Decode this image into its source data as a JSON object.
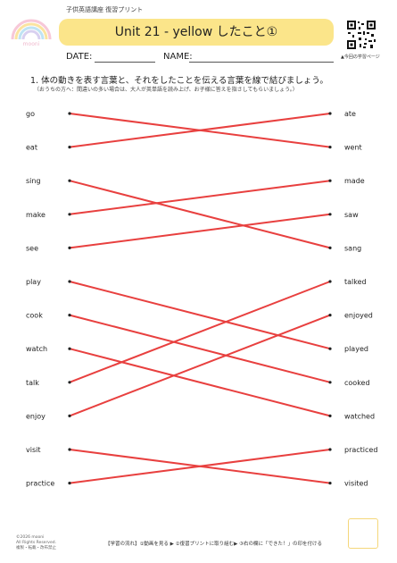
{
  "header": {
    "course": "子供英語講座 復習プリント",
    "title": "Unit 21 - yellow したこと①",
    "logo_text": "mooni",
    "qr_caption": "▲今回の学習ページ"
  },
  "fields": {
    "date_label": "DATE:",
    "name_label": "NAME:"
  },
  "instruction": "1. 体の動きを表す言葉と、それをしたことを伝える言葉を線で結びましょう。",
  "note": "（おうちの方へ：間違いの多い場合は、大人が英単語を読み上げ、お子様に答えを指さしてもらいましょう。）",
  "left_words": [
    "go",
    "eat",
    "sing",
    "make",
    "see",
    "play",
    "cook",
    "watch",
    "talk",
    "enjoy",
    "visit",
    "practice"
  ],
  "right_words": [
    "ate",
    "went",
    "made",
    "saw",
    "sang",
    "talked",
    "enjoyed",
    "played",
    "cooked",
    "watched",
    "practiced",
    "visited"
  ],
  "matches": [
    {
      "from": "go",
      "to": "went"
    },
    {
      "from": "eat",
      "to": "ate"
    },
    {
      "from": "sing",
      "to": "sang"
    },
    {
      "from": "make",
      "to": "made"
    },
    {
      "from": "see",
      "to": "saw"
    },
    {
      "from": "play",
      "to": "played"
    },
    {
      "from": "cook",
      "to": "cooked"
    },
    {
      "from": "watch",
      "to": "watched"
    },
    {
      "from": "talk",
      "to": "talked"
    },
    {
      "from": "enjoy",
      "to": "enjoyed"
    },
    {
      "from": "visit",
      "to": "visited"
    },
    {
      "from": "practice",
      "to": "practiced"
    }
  ],
  "colors": {
    "line": "#e8403f",
    "title_bar": "#fbe58a",
    "check_box": "#f5d77a"
  },
  "footer": {
    "flow": "【学習の流れ】①動画を見る ▶ ②復習プリントに取り組む▶ ③右の欄に「できた！」の印を付ける",
    "copyright_1": "©2026 mooni",
    "copyright_2": "All Rights Reserved.",
    "copyright_3": "複製・転載・改布禁止"
  }
}
